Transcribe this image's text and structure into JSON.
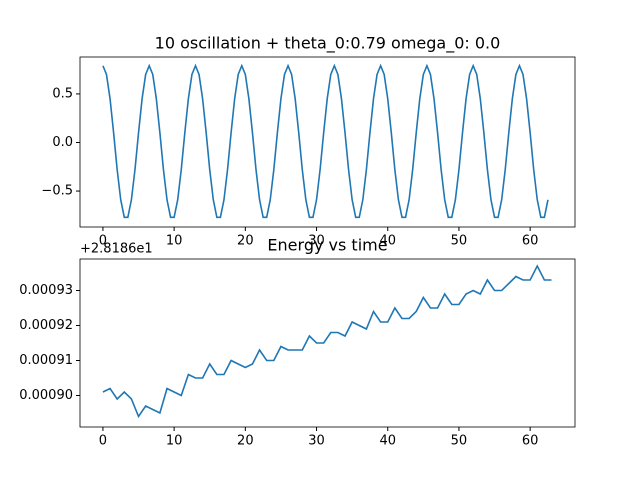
{
  "chart_data": [
    {
      "type": "line",
      "title": "10 oscillation + theta_0:0.79 omega_0: 0.0",
      "x": [
        0,
        0.5,
        1,
        1.5,
        2,
        2.5,
        3,
        3.5,
        4,
        4.5,
        5,
        5.5,
        6,
        6.5,
        7,
        7.5,
        8,
        8.5,
        9,
        9.5,
        10,
        10.5,
        11,
        11.5,
        12,
        12.5,
        13,
        13.5,
        14,
        14.5,
        15,
        15.5,
        16,
        16.5,
        17,
        17.5,
        18,
        18.5,
        19,
        19.5,
        20,
        20.5,
        21,
        21.5,
        22,
        22.5,
        23,
        23.5,
        24,
        24.5,
        25,
        25.5,
        26,
        26.5,
        27,
        27.5,
        28,
        28.5,
        29,
        29.5,
        30,
        30.5,
        31,
        31.5,
        32,
        32.5,
        33,
        33.5,
        34,
        34.5,
        35,
        35.5,
        36,
        36.5,
        37,
        37.5,
        38,
        38.5,
        39,
        39.5,
        40,
        40.5,
        41,
        41.5,
        42,
        42.5,
        43,
        43.5,
        44,
        44.5,
        45,
        45.5,
        46,
        46.5,
        47,
        47.5,
        48,
        48.5,
        49,
        49.5,
        50,
        50.5,
        51,
        51.5,
        52,
        52.5,
        53,
        53.5,
        54,
        54.5,
        55,
        55.5,
        56,
        56.5,
        57,
        57.5,
        58,
        58.5,
        59,
        59.5,
        60,
        60.5,
        61,
        61.5,
        62,
        62.5
      ],
      "values": [
        0.79,
        0.7,
        0.45,
        0.1,
        -0.28,
        -0.59,
        -0.77,
        -0.77,
        -0.59,
        -0.28,
        0.1,
        0.45,
        0.7,
        0.79,
        0.7,
        0.45,
        0.1,
        -0.28,
        -0.59,
        -0.77,
        -0.77,
        -0.59,
        -0.28,
        0.1,
        0.45,
        0.7,
        0.79,
        0.7,
        0.45,
        0.1,
        -0.28,
        -0.59,
        -0.77,
        -0.77,
        -0.59,
        -0.28,
        0.1,
        0.45,
        0.7,
        0.79,
        0.7,
        0.45,
        0.1,
        -0.28,
        -0.59,
        -0.77,
        -0.77,
        -0.59,
        -0.28,
        0.1,
        0.45,
        0.7,
        0.79,
        0.7,
        0.45,
        0.1,
        -0.28,
        -0.59,
        -0.77,
        -0.77,
        -0.59,
        -0.28,
        0.1,
        0.45,
        0.7,
        0.79,
        0.7,
        0.45,
        0.1,
        -0.28,
        -0.59,
        -0.77,
        -0.77,
        -0.59,
        -0.28,
        0.1,
        0.45,
        0.7,
        0.79,
        0.7,
        0.45,
        0.1,
        -0.28,
        -0.59,
        -0.77,
        -0.77,
        -0.59,
        -0.28,
        0.1,
        0.45,
        0.7,
        0.79,
        0.7,
        0.45,
        0.1,
        -0.28,
        -0.59,
        -0.77,
        -0.77,
        -0.59,
        -0.28,
        0.1,
        0.45,
        0.7,
        0.79,
        0.7,
        0.45,
        0.1,
        -0.28,
        -0.59,
        -0.77,
        -0.77,
        -0.59,
        -0.28,
        0.1,
        0.45,
        0.7,
        0.79,
        0.7,
        0.45,
        0.1,
        -0.28,
        -0.59,
        -0.77,
        -0.77,
        -0.59
      ],
      "color": "#1f77b4",
      "xlim": [
        -3.22,
        66.3
      ],
      "xticks": [
        0,
        10,
        20,
        30,
        40,
        50,
        60
      ],
      "ylim": [
        -0.87,
        0.88
      ],
      "yticks": [
        {
          "value": -0.5,
          "label": "−0.5"
        },
        {
          "value": 0,
          "label": "0.0"
        },
        {
          "value": 0.5,
          "label": "0.5"
        }
      ]
    },
    {
      "type": "line",
      "title": "Energy vs time",
      "offset_text": "+2.8186e1",
      "x": [
        0,
        1,
        2,
        3,
        4,
        5,
        6,
        7,
        8,
        9,
        10,
        11,
        12,
        13,
        14,
        15,
        16,
        17,
        18,
        19,
        20,
        21,
        22,
        23,
        24,
        25,
        26,
        27,
        28,
        29,
        30,
        31,
        32,
        33,
        34,
        35,
        36,
        37,
        38,
        39,
        40,
        41,
        42,
        43,
        44,
        45,
        46,
        47,
        48,
        49,
        50,
        51,
        52,
        53,
        54,
        55,
        56,
        57,
        58,
        59,
        60,
        61,
        62,
        63
      ],
      "values": [
        0.000901,
        0.000902,
        0.000899,
        0.000901,
        0.000899,
        0.000894,
        0.000897,
        0.000896,
        0.000895,
        0.000902,
        0.000901,
        0.0009,
        0.000906,
        0.000905,
        0.000905,
        0.000909,
        0.000906,
        0.000906,
        0.00091,
        0.000909,
        0.000908,
        0.000909,
        0.000913,
        0.00091,
        0.00091,
        0.000914,
        0.000913,
        0.000913,
        0.000913,
        0.000917,
        0.000915,
        0.000915,
        0.000918,
        0.000918,
        0.000917,
        0.000921,
        0.00092,
        0.000919,
        0.000924,
        0.000921,
        0.000921,
        0.000925,
        0.000922,
        0.000922,
        0.000924,
        0.000928,
        0.000925,
        0.000925,
        0.000929,
        0.000926,
        0.000926,
        0.000929,
        0.00093,
        0.000929,
        0.000933,
        0.00093,
        0.00093,
        0.000932,
        0.000934,
        0.000933,
        0.000933,
        0.000937,
        0.000933,
        0.000933
      ],
      "color": "#1f77b4",
      "xlim": [
        -3.22,
        66.3
      ],
      "xticks": [
        0,
        10,
        20,
        30,
        40,
        50,
        60
      ],
      "ylim": [
        0.000891,
        0.000939
      ],
      "yticks": [
        {
          "value": 0.0009,
          "label": "0.00090"
        },
        {
          "value": 0.00091,
          "label": "0.00091"
        },
        {
          "value": 0.00092,
          "label": "0.00092"
        },
        {
          "value": 0.00093,
          "label": "0.00093"
        }
      ]
    }
  ]
}
